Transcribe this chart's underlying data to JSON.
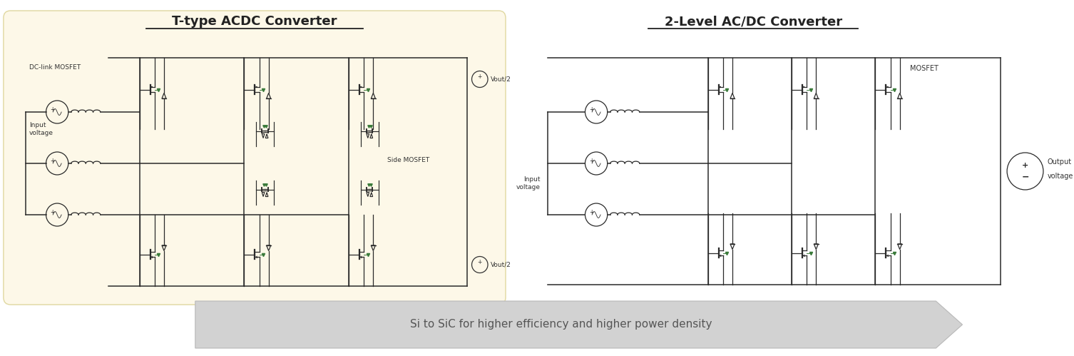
{
  "fig_width": 15.06,
  "fig_height": 4.99,
  "bg_color": "#ffffff",
  "left_bg_color": "#fdf8e8",
  "left_title": "T-type ACDC Converter",
  "right_title": "2-Level AC/DC Converter",
  "arrow_text": "Si to SiC for higher efficiency and higher power density",
  "text_color": "#333333",
  "green_color": "#3a7a3a",
  "line_color": "#2a2a2a",
  "title_fontsize": 13,
  "label_fontsize": 6.5,
  "arrow_text_fontsize": 11
}
